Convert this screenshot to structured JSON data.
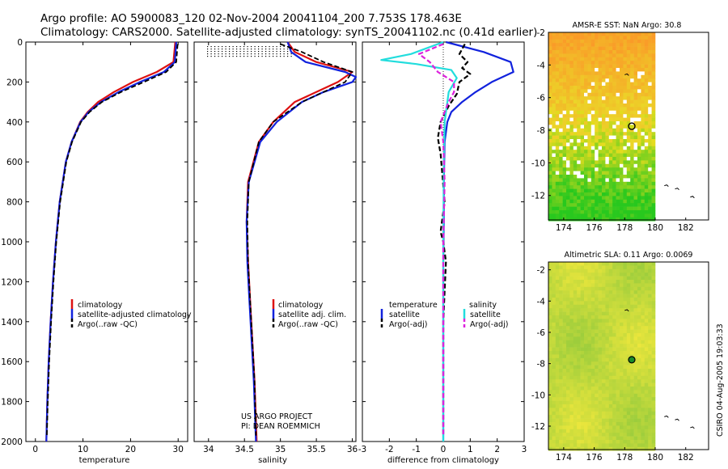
{
  "figure": {
    "title_line1": "Argo profile: AO 5900083_120 02-Nov-2004 20041104_200 7.753S 178.463E",
    "title_line2": "Climatology: CARS2000. Satellite-adjusted climatology: synTS_20041102.nc (0.41d earlier)",
    "credit": "CSIRO 04-Aug-2005 19:03:33",
    "project_line1": "US ARGO PROJECT",
    "project_line2": "PI: DEAN ROEMMICH"
  },
  "colors": {
    "climatology": "#dd1111",
    "satellite": "#1122dd",
    "argo": "#000000",
    "salinity_satellite": "#22dddd",
    "salinity_argo": "#dd22dd",
    "land_white": "#ffffff"
  },
  "chart_data": [
    {
      "type": "line",
      "name": "temperature_profile",
      "xlabel": "temperature",
      "xlim": [
        -2,
        32
      ],
      "ylim": [
        2000,
        0
      ],
      "xticks": [
        0,
        10,
        20,
        30
      ],
      "yticks": [
        0,
        200,
        400,
        600,
        800,
        1000,
        1200,
        1400,
        1600,
        1800,
        2000
      ],
      "legend": [
        "climatology",
        "satellite-adjusted climatology",
        "Argo(..raw -QC)"
      ],
      "series": [
        {
          "name": "climatology",
          "depth": [
            0,
            100,
            150,
            200,
            250,
            300,
            350,
            400,
            500,
            600,
            800,
            1000,
            1200,
            1400,
            1600,
            1800,
            2000
          ],
          "values": [
            29.4,
            29.0,
            25.5,
            20.5,
            16.5,
            13.2,
            11.0,
            9.4,
            7.6,
            6.4,
            5.1,
            4.3,
            3.7,
            3.2,
            2.8,
            2.5,
            2.3
          ]
        },
        {
          "name": "satellite-adjusted climatology",
          "depth": [
            0,
            100,
            150,
            200,
            250,
            300,
            350,
            400,
            500,
            600,
            800,
            1000,
            1200,
            1400,
            1600,
            1800,
            2000
          ],
          "values": [
            29.6,
            29.3,
            27.0,
            22.0,
            17.5,
            13.8,
            11.2,
            9.5,
            7.6,
            6.4,
            5.1,
            4.3,
            3.7,
            3.2,
            2.8,
            2.5,
            2.3
          ]
        },
        {
          "name": "Argo(..raw -QC)",
          "depth": [
            10,
            100,
            150,
            200,
            250,
            300,
            350,
            400,
            500,
            600,
            800,
            1000,
            1200,
            1400,
            1600,
            1800,
            1970
          ],
          "values": [
            29.9,
            29.6,
            27.5,
            22.8,
            18.0,
            14.0,
            11.4,
            9.6,
            7.7,
            6.5,
            5.2,
            4.4,
            3.8,
            3.3,
            2.9,
            2.6,
            2.4
          ]
        }
      ]
    },
    {
      "type": "line",
      "name": "salinity_profile",
      "xlabel": "salinity",
      "xlim": [
        33.8,
        36.05
      ],
      "ylim": [
        2000,
        0
      ],
      "xticks": [
        34,
        34.5,
        35,
        35.5,
        36
      ],
      "legend": [
        "climatology",
        "satellite adj. clim.",
        "Argo(..raw -QC)"
      ],
      "series": [
        {
          "name": "climatology",
          "depth": [
            0,
            50,
            100,
            150,
            200,
            250,
            300,
            400,
            500,
            700,
            900,
            1100,
            1300,
            1500,
            1700,
            2000
          ],
          "values": [
            35.1,
            35.2,
            35.5,
            36.0,
            35.8,
            35.5,
            35.2,
            34.9,
            34.7,
            34.55,
            34.53,
            34.55,
            34.58,
            34.61,
            34.64,
            34.67
          ]
        },
        {
          "name": "satellite adj. clim.",
          "depth": [
            0,
            50,
            100,
            150,
            175,
            200,
            250,
            300,
            400,
            500,
            700,
            900,
            1100,
            1300,
            1500,
            1700,
            2000
          ],
          "values": [
            35.1,
            35.15,
            35.35,
            35.9,
            36.05,
            36.0,
            35.6,
            35.3,
            34.95,
            34.72,
            34.56,
            34.53,
            34.54,
            34.57,
            34.6,
            34.63,
            34.66
          ]
        },
        {
          "name": "Argo(..raw -QC)",
          "depth": [
            10,
            50,
            100,
            150,
            200,
            250,
            300,
            400,
            500,
            700,
            900,
            1100,
            1300,
            1500,
            1700,
            1970
          ],
          "values": [
            35.0,
            35.3,
            35.6,
            36.0,
            35.9,
            35.6,
            35.3,
            34.9,
            34.7,
            34.56,
            34.54,
            34.55,
            34.58,
            34.61,
            34.64,
            34.66
          ]
        }
      ]
    },
    {
      "type": "line",
      "name": "difference_profile",
      "xlabel": "difference from climatology",
      "xlim": [
        -3,
        3
      ],
      "ylim": [
        2000,
        0
      ],
      "xticks": [
        -3,
        -2,
        -1,
        0,
        1,
        2,
        3
      ],
      "legend_left_header": "temperature",
      "legend_right_header": "salinity",
      "legend": [
        "satellite",
        "Argo(-adj)",
        "satellite",
        "Argo(-adj)"
      ],
      "series": [
        {
          "name": "temperature satellite",
          "depth": [
            0,
            50,
            100,
            150,
            200,
            250,
            300,
            350,
            400,
            500,
            700,
            900,
            1100,
            1300,
            1600,
            2000
          ],
          "values": [
            0.1,
            1.5,
            2.5,
            2.6,
            1.8,
            1.2,
            0.7,
            0.3,
            0.15,
            0.05,
            0.02,
            0.02,
            0.0,
            0.0,
            0.0,
            0.0
          ]
        },
        {
          "name": "temperature Argo(-adj)",
          "depth": [
            10,
            60,
            100,
            130,
            160,
            200,
            260,
            320,
            400,
            480,
            560,
            800,
            950,
            1000,
            1100,
            1400,
            1970
          ],
          "values": [
            0.8,
            0.6,
            0.9,
            0.7,
            1.0,
            0.6,
            0.5,
            0.2,
            -0.1,
            -0.2,
            -0.1,
            0.05,
            -0.1,
            0.0,
            0.1,
            0.0,
            0.0
          ]
        },
        {
          "name": "salinity satellite",
          "depth": [
            0,
            60,
            90,
            110,
            140,
            180,
            250,
            400,
            600,
            1000,
            1500,
            2000
          ],
          "values": [
            0.0,
            -1.2,
            -2.3,
            -1.0,
            0.3,
            0.5,
            0.2,
            0.05,
            0.02,
            0.0,
            0.0,
            0.0
          ]
        },
        {
          "name": "salinity Argo(-adj)",
          "depth": [
            10,
            60,
            100,
            150,
            200,
            250,
            300,
            400,
            500,
            700,
            1000,
            1500,
            1970
          ],
          "values": [
            0.0,
            -0.9,
            -0.5,
            -0.2,
            0.4,
            0.4,
            0.2,
            -0.1,
            0.0,
            0.05,
            0.0,
            0.0,
            0.0
          ]
        }
      ]
    },
    {
      "type": "heatmap",
      "name": "sst_map",
      "title": "AMSR-E SST: NaN Argo: 30.8",
      "xlim": [
        173,
        183.5
      ],
      "ylim": [
        -13.5,
        -2
      ],
      "xticks": [
        174,
        176,
        178,
        180,
        182
      ],
      "yticks": [
        -2,
        -4,
        -6,
        -8,
        -10,
        -12
      ],
      "marker": {
        "lon": 178.463,
        "lat": -7.753
      }
    },
    {
      "type": "heatmap",
      "name": "sla_map",
      "title": "Altimetric SLA: 0.11 Argo: 0.0069",
      "xlim": [
        173,
        183.5
      ],
      "ylim": [
        -13.5,
        -1.5
      ],
      "xticks": [
        174,
        176,
        178,
        180,
        182
      ],
      "yticks": [
        -2,
        -4,
        -6,
        -8,
        -10,
        -12
      ],
      "marker": {
        "lon": 178.463,
        "lat": -7.753
      }
    }
  ]
}
